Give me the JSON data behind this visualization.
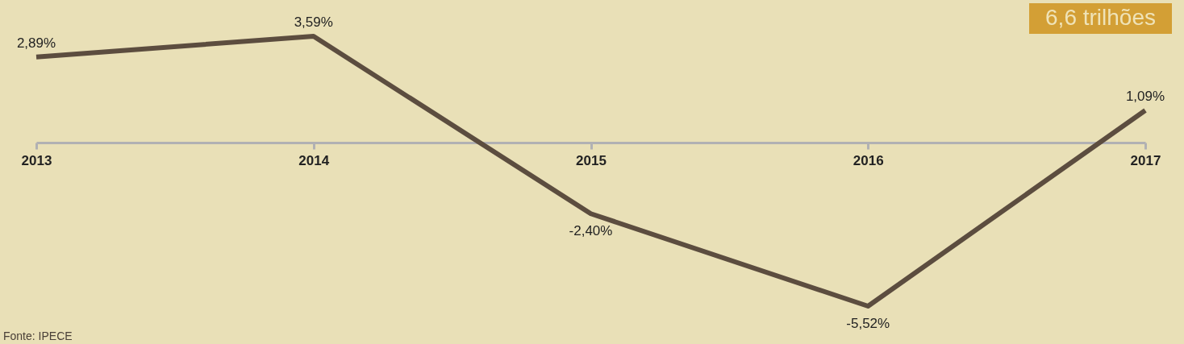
{
  "chart_data": {
    "type": "line",
    "categories": [
      "2013",
      "2014",
      "2015",
      "2016",
      "2017"
    ],
    "series": [
      {
        "color": "#5c4d3f",
        "values": [
          2.89,
          3.59,
          -2.4,
          -5.52,
          1.09
        ],
        "value_labels": [
          "2,89%",
          "3,59%",
          "-2,40%",
          "-5,52%",
          "1,09%"
        ]
      }
    ],
    "annotations": [
      "6,6 trilhões",
      "Fonte: IPECE"
    ],
    "grid": false,
    "legend": false,
    "marker": "none",
    "line_style": "solid"
  }
}
